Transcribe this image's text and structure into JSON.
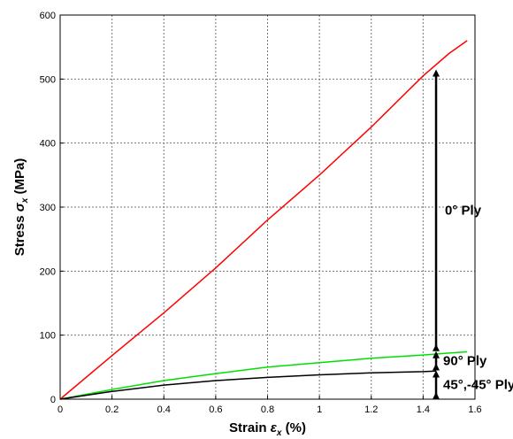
{
  "chart_data": {
    "type": "line",
    "xlabel": {
      "prefix": "Strain ",
      "symbol": "ε",
      "sub": "x",
      "suffix": " (%)"
    },
    "ylabel": {
      "prefix": "Stress ",
      "symbol": "σ",
      "sub": "x",
      "suffix": " (MPa)"
    },
    "xlim": [
      0,
      1.6
    ],
    "ylim": [
      0,
      600
    ],
    "xticks": [
      0,
      0.2,
      0.4,
      0.6,
      0.8,
      1,
      1.2,
      1.4,
      1.6
    ],
    "xtick_labels": [
      "0",
      "0.2",
      "0.4",
      "0.6",
      "0.8",
      "1",
      "1.2",
      "1.4",
      "1.6"
    ],
    "yticks": [
      0,
      100,
      200,
      300,
      400,
      500,
      600
    ],
    "ytick_labels": [
      "0",
      "100",
      "200",
      "300",
      "400",
      "500",
      "600"
    ],
    "grid": true,
    "series": [
      {
        "color": "#ff0000",
        "x": [
          0,
          0.2,
          0.4,
          0.6,
          0.8,
          1.0,
          1.2,
          1.4,
          1.5,
          1.57
        ],
        "y": [
          0,
          68,
          135,
          205,
          280,
          350,
          425,
          505,
          540,
          560
        ]
      },
      {
        "color": "#00e000",
        "x": [
          0,
          0.2,
          0.4,
          0.6,
          0.8,
          1.0,
          1.2,
          1.4,
          1.5,
          1.57
        ],
        "y": [
          0,
          15,
          29,
          40,
          50,
          57,
          64,
          69,
          72,
          74
        ]
      },
      {
        "color": "#000000",
        "x": [
          0,
          0.2,
          0.4,
          0.6,
          0.8,
          1.0,
          1.2,
          1.4,
          1.45
        ],
        "y": [
          0,
          12,
          22,
          29,
          34,
          38,
          41,
          43,
          44
        ]
      }
    ],
    "annotations": [
      {
        "label": "0° Ply",
        "x": 1.45,
        "y_from": 75,
        "y_to": 515
      },
      {
        "label": "90° Ply",
        "x": 1.45,
        "y_from": 45,
        "y_to": 75
      },
      {
        "label": "45°,-45° Ply",
        "x": 1.45,
        "y_from": 0,
        "y_to": 45
      }
    ]
  }
}
